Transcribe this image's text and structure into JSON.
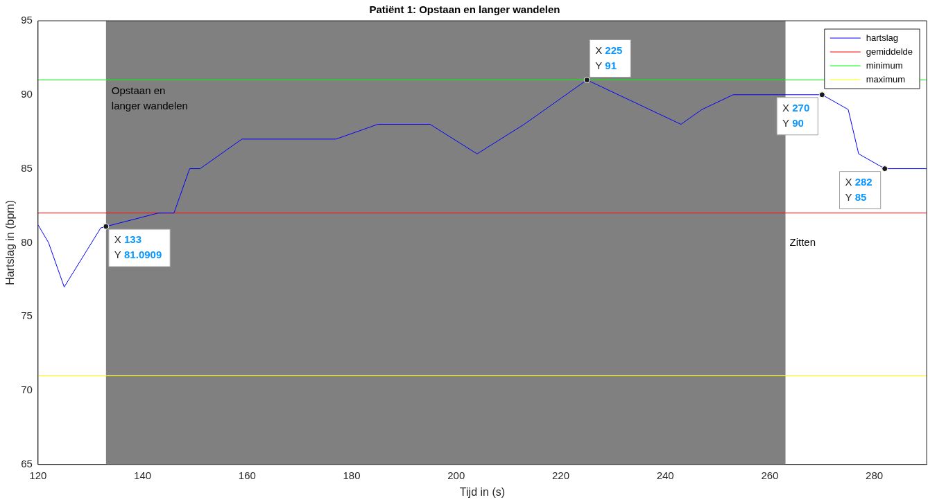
{
  "chart_data": {
    "type": "line",
    "title": "Patiënt 1: Opstaan en langer wandelen",
    "xlabel": "Tijd in (s)",
    "ylabel": "Hartslag in (bpm)",
    "x": [
      120,
      122,
      125,
      132,
      133,
      143,
      146,
      149,
      151,
      159,
      177,
      185,
      195,
      204,
      213,
      225,
      243,
      247,
      253,
      270,
      275,
      277,
      282,
      290
    ],
    "series": [
      {
        "name": "hartslag",
        "color": "#0000ff",
        "values": [
          81.2,
          80,
          77,
          81,
          81.0909,
          82,
          82,
          85,
          85,
          87,
          87,
          88,
          88,
          86,
          88,
          91,
          88,
          89,
          90,
          90,
          89,
          86,
          85,
          85
        ]
      }
    ],
    "ref_lines": [
      {
        "axis": "y",
        "value": 82,
        "label": "gemiddelde",
        "color": "#ff0000"
      },
      {
        "axis": "y",
        "value": 91,
        "label": "minimum",
        "color": "#00ff00"
      },
      {
        "axis": "y",
        "value": 71,
        "label": "maximum",
        "color": "#ffff00"
      }
    ],
    "bands": [
      {
        "axis": "x",
        "from": 133,
        "to": 263,
        "label": "Opstaan en\nlanger wandelen",
        "color": "#808080"
      }
    ],
    "annotations": [
      {
        "text": "X 133\nY 81.0909",
        "x": 133,
        "y": 81.0909
      },
      {
        "text": "X 225\nY 91",
        "x": 225,
        "y": 91
      },
      {
        "text": "X 270\nY 90",
        "x": 270,
        "y": 90
      },
      {
        "text": "X 282\nY 85",
        "x": 282,
        "y": 85
      },
      "Zitten"
    ],
    "xlim": [
      120,
      290
    ],
    "xticks": [
      120,
      140,
      160,
      180,
      200,
      220,
      240,
      260,
      280
    ],
    "ylim": [
      65,
      95
    ],
    "yticks": [
      65,
      70,
      75,
      80,
      85,
      90,
      95
    ],
    "grid": false,
    "legend": "top right",
    "marker": "none",
    "line_style": "solid"
  }
}
